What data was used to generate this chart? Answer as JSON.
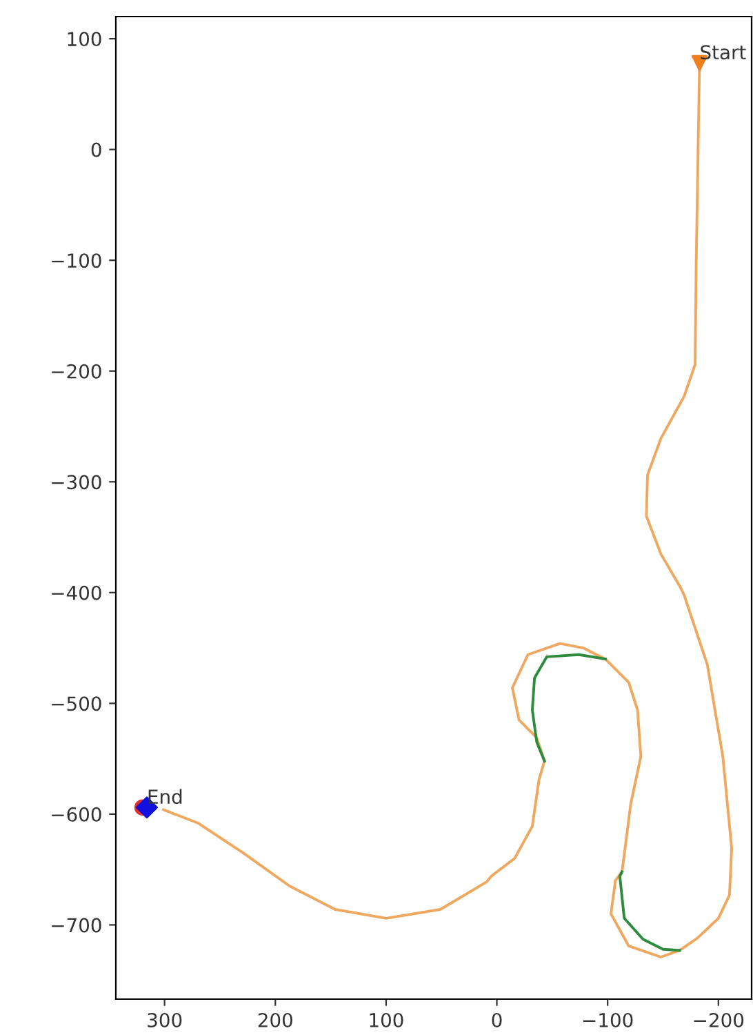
{
  "chart_data": {
    "type": "line",
    "xlim": [
      344,
      -230
    ],
    "ylim": [
      -767,
      120
    ],
    "xticks": [
      {
        "value": 300,
        "label": "300"
      },
      {
        "value": 200,
        "label": "200"
      },
      {
        "value": 100,
        "label": "100"
      },
      {
        "value": 0,
        "label": "0"
      },
      {
        "value": -100,
        "label": "−100"
      },
      {
        "value": -200,
        "label": "−200"
      }
    ],
    "yticks": [
      {
        "value": 100,
        "label": "100"
      },
      {
        "value": 0,
        "label": "0"
      },
      {
        "value": -100,
        "label": "−100"
      },
      {
        "value": -200,
        "label": "−200"
      },
      {
        "value": -300,
        "label": "−300"
      },
      {
        "value": -400,
        "label": "−400"
      },
      {
        "value": -500,
        "label": "−500"
      },
      {
        "value": -600,
        "label": "−600"
      },
      {
        "value": -700,
        "label": "−700"
      }
    ],
    "grid": false,
    "legend": false,
    "series": [
      {
        "type": "line",
        "color": "#eea860",
        "x": [
          -183,
          -180,
          -179,
          -169,
          -148,
          -136,
          -135,
          -148,
          -165,
          -169,
          -190,
          -204,
          -212,
          -210,
          -200,
          -181,
          -165,
          -148,
          -119,
          -103,
          -107,
          -113,
          -121,
          -130,
          -127,
          -119,
          -98,
          -78,
          -57,
          -28,
          -14,
          -20,
          -36,
          -43,
          -38,
          -32,
          -16,
          5,
          9,
          51,
          100,
          146,
          187,
          229,
          270,
          301
        ],
        "values": [
          81,
          -100,
          -194,
          -223,
          -261,
          -294,
          -331,
          -365,
          -394,
          -402,
          -465,
          -548,
          -631,
          -673,
          -694,
          -712,
          -723,
          -729,
          -719,
          -690,
          -660,
          -652,
          -590,
          -548,
          -506,
          -481,
          -460,
          -450,
          -446,
          -456,
          -486,
          -515,
          -531,
          -552,
          -569,
          -611,
          -640,
          -656,
          -661,
          -686,
          -694,
          -686,
          -665,
          -635,
          -608,
          -596
        ]
      },
      {
        "type": "line",
        "color": "#2e8b3e",
        "x": [
          -98,
          -74,
          -45,
          -34,
          -32,
          -36,
          -43
        ],
        "values": [
          -460,
          -456,
          -458,
          -477,
          -506,
          -535,
          -552
        ]
      },
      {
        "type": "line",
        "color": "#2e8b3e",
        "x": [
          -113,
          -111,
          -115,
          -132,
          -150,
          -165
        ],
        "values": [
          -652,
          -656,
          -694,
          -713,
          -722,
          -723
        ]
      },
      {
        "type": "scatter",
        "color": "#f07f20",
        "marker": "triangle",
        "x": [
          -183
        ],
        "values": [
          78
        ]
      },
      {
        "type": "scatter",
        "color": "#e03030",
        "marker": "circle",
        "x": [
          320
        ],
        "values": [
          -594
        ]
      },
      {
        "type": "scatter",
        "color": "#1010e0",
        "marker": "diamond",
        "x": [
          316
        ],
        "values": [
          -594
        ]
      }
    ],
    "annotations": [
      {
        "text": "Start",
        "x": -183,
        "y": 78
      },
      {
        "text": "End",
        "x": 316,
        "y": -594
      }
    ]
  }
}
